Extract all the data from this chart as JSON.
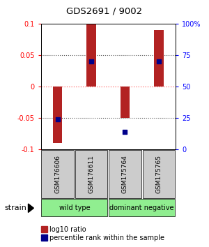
{
  "title": "GDS2691 / 9002",
  "samples": [
    "GSM176606",
    "GSM176611",
    "GSM175764",
    "GSM175765"
  ],
  "log10_ratio": [
    -0.09,
    0.1,
    -0.05,
    0.09
  ],
  "percentile_rank_pct": [
    24,
    70,
    14,
    70
  ],
  "groups": [
    {
      "label": "wild type",
      "start": 0,
      "end": 2,
      "color": "#90EE90"
    },
    {
      "label": "dominant negative",
      "start": 2,
      "end": 4,
      "color": "#90EE90"
    }
  ],
  "group_label": "strain",
  "ylim": [
    -0.1,
    0.1
  ],
  "yticks_left": [
    -0.1,
    -0.05,
    0,
    0.05,
    0.1
  ],
  "yticks_right": [
    0,
    25,
    50,
    75,
    100
  ],
  "bar_color": "#B22222",
  "dot_color": "#00008B",
  "bg_color": "#FFFFFF",
  "plot_bg": "#FFFFFF",
  "legend_red_label": "log10 ratio",
  "legend_blue_label": "percentile rank within the sample",
  "dotted_line_color_zero": "#FF6666",
  "dotted_line_color": "#555555",
  "sample_box_color": "#CCCCCC"
}
